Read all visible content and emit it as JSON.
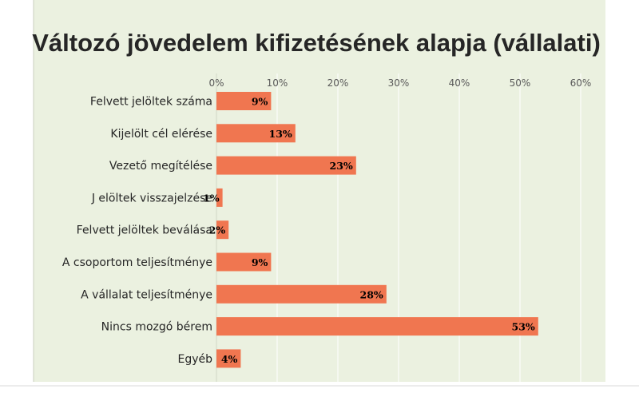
{
  "chart_data": {
    "type": "bar",
    "orientation": "horizontal",
    "title": "Változó jövedelem kifizetésének alapja (vállalati)",
    "categories": [
      "Felvett jelöltek száma",
      "Kijelölt cél elérése",
      "Vezető megítélése",
      "J elöltek visszajelzése",
      "Felvett jelöltek beválása",
      "A csoportom teljesítménye",
      "A vállalat teljesítménye",
      "Nincs mozgó bérem",
      "Egyéb"
    ],
    "values": [
      9,
      13,
      23,
      1,
      2,
      9,
      28,
      53,
      4
    ],
    "data_labels": [
      "9%",
      "13%",
      "23%",
      "1%",
      "2%",
      "9%",
      "28%",
      "53%",
      "4%"
    ],
    "xlim": [
      0,
      60
    ],
    "ticks": [
      0,
      10,
      20,
      30,
      40,
      50,
      60
    ],
    "tick_labels": [
      "0%",
      "10%",
      "20%",
      "30%",
      "40%",
      "50%",
      "60%"
    ],
    "x_axis_position": "top",
    "grid": true,
    "legend": "none",
    "colors": {
      "bar": "#f07650",
      "plot_background": "#ebf1e0",
      "grid": "#ffffff",
      "title": "#262626"
    }
  }
}
